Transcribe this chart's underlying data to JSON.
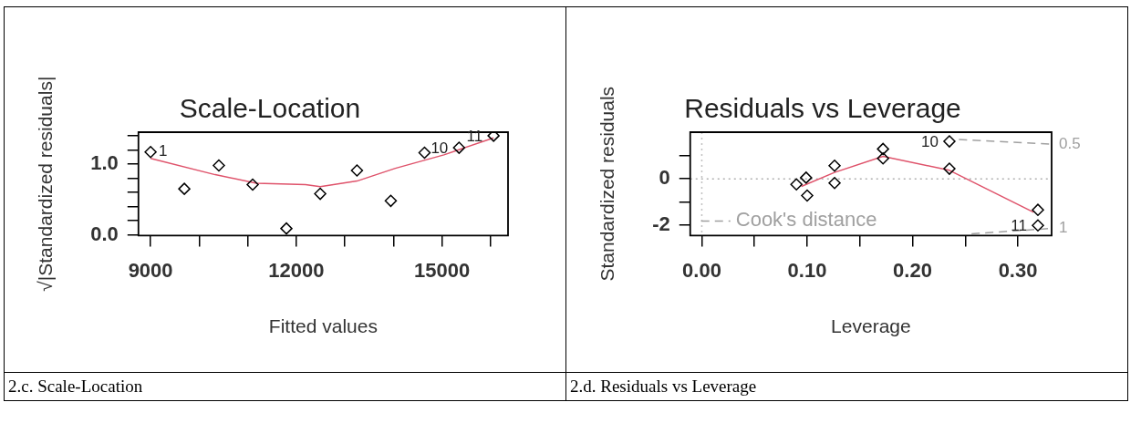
{
  "chart_data": [
    {
      "type": "scatter",
      "title": "Scale-Location",
      "xlabel": "Fitted values",
      "ylabel": "√|Standardized residuals|",
      "xlim": [
        8750,
        16360
      ],
      "xticks": [
        9000,
        {
          "value": 10000,
          "label": null
        },
        {
          "value": 11000,
          "label": null
        },
        12000,
        {
          "value": 13000,
          "label": null
        },
        {
          "value": 14000,
          "label": null
        },
        15000,
        {
          "value": 16000,
          "label": null
        }
      ],
      "ylim": [
        -0.01,
        1.45
      ],
      "yticks": [
        {
          "value": 0,
          "label": "0.0"
        },
        {
          "value": 0.2,
          "label": null
        },
        {
          "value": 0.4,
          "label": null
        },
        {
          "value": 0.6,
          "label": null
        },
        {
          "value": 0.8,
          "label": null
        },
        {
          "value": 1,
          "label": "1.0"
        },
        {
          "value": 1.2,
          "label": null
        },
        {
          "value": 1.4,
          "label": null
        }
      ],
      "series": [
        {
          "type": "scatter",
          "marker": "diamond",
          "color": "#000000",
          "x": [
            9000,
            9695,
            10406,
            11102,
            11797,
            12493,
            13250,
            13946,
            14641,
            15352,
            16063
          ],
          "values": [
            1.17,
            0.65,
            0.98,
            0.71,
            0.09,
            0.58,
            0.91,
            0.48,
            1.16,
            1.23,
            1.4
          ]
        },
        {
          "type": "line",
          "marker": "none",
          "color": "#df536b",
          "x": [
            9000,
            10330,
            11180,
            12190,
            12493,
            13250,
            14040,
            15040,
            16063
          ],
          "values": [
            1.08,
            0.85,
            0.73,
            0.71,
            0.68,
            0.76,
            0.94,
            1.13,
            1.37
          ]
        }
      ],
      "annotations": [
        {
          "text": "1",
          "x": 9000,
          "y": 1.17
        },
        {
          "text": "10",
          "x": 15352,
          "y": 1.23
        },
        {
          "text": "11",
          "x": 16063,
          "y": 1.4
        },
        "2.c. Scale-Location"
      ]
    },
    {
      "type": "scatter",
      "title": "Residuals vs Leverage",
      "xlabel": "Leverage",
      "ylabel": "Standardized residuals",
      "legend": "bottom left",
      "xlim": [
        -0.011,
        0.332
      ],
      "xticks": [
        {
          "value": 0,
          "label": "0.00"
        },
        {
          "value": 0.05,
          "label": null
        },
        {
          "value": 0.1,
          "label": "0.10"
        },
        {
          "value": 0.15,
          "label": null
        },
        {
          "value": 0.2,
          "label": "0.20"
        },
        {
          "value": 0.25,
          "label": null
        },
        {
          "value": 0.3,
          "label": "0.30"
        }
      ],
      "ylim": [
        -2.47,
        2.03
      ],
      "yticks": [
        -2,
        {
          "value": -1,
          "label": null
        },
        0,
        {
          "value": 1,
          "label": null
        }
      ],
      "series": [
        {
          "type": "scatter",
          "marker": "diamond",
          "color": "#000000",
          "x": [
            0.0898,
            0.099,
            0.1,
            0.126,
            0.126,
            0.172,
            0.172,
            0.235,
            0.235,
            0.319,
            0.319
          ],
          "values": [
            -0.24,
            0.05,
            -0.73,
            0.57,
            -0.18,
            1.3,
            0.89,
            1.63,
            0.44,
            -1.35,
            -2.03
          ]
        },
        {
          "type": "line",
          "marker": "none",
          "color": "#df536b",
          "x": [
            0.0945,
            0.126,
            0.172,
            0.235,
            0.315
          ],
          "values": [
            -0.33,
            0.28,
            0.98,
            0.37,
            -1.46
          ]
        },
        {
          "type": "line",
          "name": "Cook's distance",
          "color": "#a0a0a0",
          "line_style": "dashed",
          "marker": "none",
          "x": [
            0.244,
            0.332,
            null,
            0.256,
            0.332
          ],
          "values": [
            1.71,
            1.51,
            null,
            -2.39,
            -2.16
          ]
        }
      ],
      "ref_lines": [
        {
          "axis": "x",
          "value": 0,
          "color": "#c0c0c0",
          "line_style": "dotted"
        },
        {
          "axis": "y",
          "value": 0,
          "color": "#b0b0b0",
          "line_style": "dotted"
        }
      ],
      "annotations": [
        {
          "text": "10",
          "x": 0.235,
          "y": 1.63
        },
        {
          "text": "11",
          "x": 0.319,
          "y": -2.03
        },
        {
          "text": "0.5",
          "x": 0.332,
          "y": 1.51
        },
        {
          "text": "1",
          "x": 0.332,
          "y": -2.16
        },
        "2.d. Residuals vs Leverage"
      ]
    }
  ]
}
